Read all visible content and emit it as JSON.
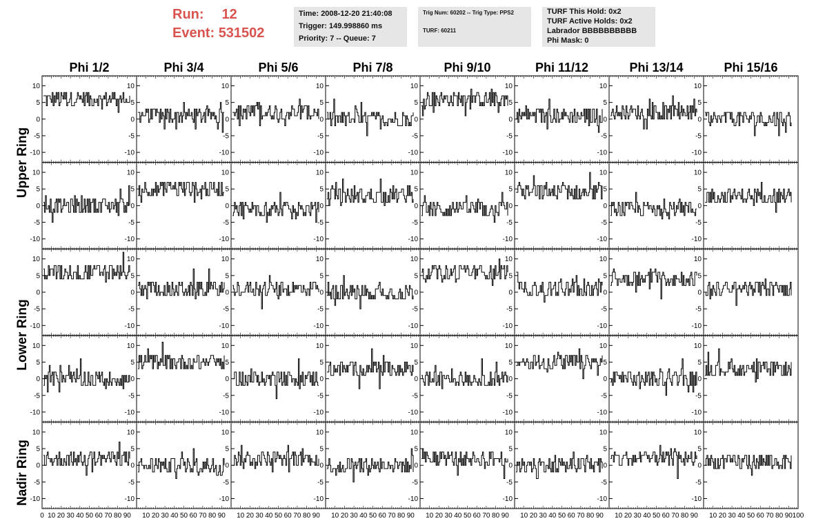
{
  "header": {
    "run_label": "Run:",
    "run_value": "12",
    "event_label": "Event:",
    "event_value": "531502"
  },
  "info_time": {
    "time": "Time: 2008-12-20 21:40:08",
    "trigger": "Trigger: 149.998860 ms",
    "priority": "Priority: 7 -- Queue: 7"
  },
  "info_trig": {
    "trig": "Trig Num: 60202 -- Trig Type: PPS2",
    "turf": "TURF: 60211"
  },
  "info_turf": {
    "this_hold": "TURF This Hold: 0x2",
    "active_holds": "TURF Active Holds: 0x2",
    "labrador": "Labrador BBBBBBBBBB",
    "phi_mask": "Phi Mask: 0"
  },
  "columns": [
    "Phi 1/2",
    "Phi 3/4",
    "Phi 5/6",
    "Phi 7/8",
    "Phi 9/10",
    "Phi 11/12",
    "Phi 13/14",
    "Phi 15/16"
  ],
  "ring_labels": [
    "Upper Ring",
    "Lower Ring",
    "Nadir Ring"
  ],
  "chart_data": {
    "type": "line",
    "title": "",
    "xlabel": "",
    "ylabel": "",
    "xlim": [
      0,
      100
    ],
    "ylim": [
      -13,
      13
    ],
    "y_ticks": [
      -10,
      -5,
      0,
      5,
      10
    ],
    "y_tick_labels": [
      "-10",
      "-5",
      "0",
      "5",
      "10"
    ],
    "x_tick_labels": [
      "0",
      "10",
      "20",
      "30",
      "40",
      "50",
      "60",
      "70",
      "80",
      "90",
      "100"
    ],
    "note_values": "approximate mean baseline of each waveform trace (rows top to bottom, columns Phi 1/2 .. Phi 15/16)",
    "row_baselines": [
      [
        6,
        1,
        2,
        0,
        6,
        1,
        2,
        0
      ],
      [
        0,
        5,
        -1,
        3,
        -1,
        4,
        -1,
        3
      ],
      [
        6,
        1,
        1,
        0,
        6,
        1,
        4,
        1
      ],
      [
        0,
        5,
        0,
        3,
        0,
        5,
        0,
        3
      ],
      [
        2,
        0,
        2,
        0,
        2,
        0,
        2,
        1
      ]
    ],
    "n_samples": 90,
    "trace_color": "#000000"
  }
}
